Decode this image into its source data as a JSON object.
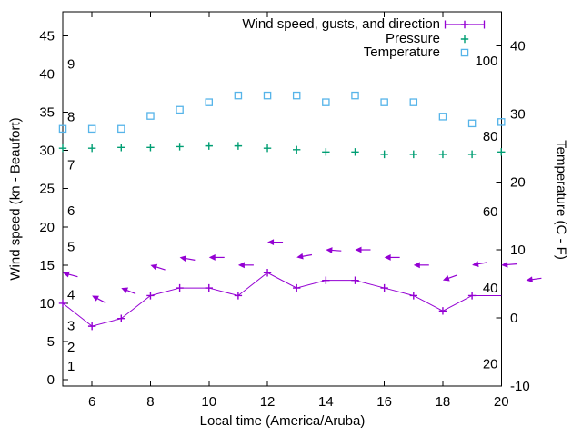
{
  "axis_titles": {
    "x": "Local time (America/Aruba)",
    "y_left": "Wind speed (kn - Beaufort)",
    "y_right": "Temperature (C - F)"
  },
  "legend": {
    "position": "top-right-inside",
    "items": [
      {
        "label": "Wind speed, gusts, and direction",
        "series": "wind",
        "marker": "errorbar-line",
        "color": "#9400d3"
      },
      {
        "label": "Pressure",
        "series": "pressure",
        "marker": "plus",
        "color": "#009e73"
      },
      {
        "label": "Temperature",
        "series": "temperature",
        "marker": "square",
        "color": "#56b4e9"
      }
    ]
  },
  "chart_data": {
    "type": "line",
    "title": "",
    "xlabel": "Local time (America/Aruba)",
    "x": [
      5,
      6,
      7,
      8,
      9,
      10,
      11,
      12,
      13,
      14,
      15,
      16,
      17,
      18,
      19,
      20
    ],
    "series": [
      {
        "name": "Wind speed (kn)",
        "style": "line-with-plus-markers",
        "color": "#9400d3",
        "values": [
          10,
          7,
          8,
          11,
          12,
          12,
          11,
          14,
          12,
          13,
          13,
          12,
          11,
          9,
          11,
          11
        ],
        "last_marker_hidden_at_border": true
      },
      {
        "name": "Wind gusts with direction arrows (kn)",
        "style": "arrows",
        "color": "#9400d3",
        "values": [
          14,
          11,
          12,
          15,
          16,
          16,
          15,
          18,
          16,
          17,
          17,
          16,
          15,
          13,
          15,
          15
        ],
        "arrow_tilt_deg_up_left": [
          15,
          28,
          22,
          18,
          10,
          0,
          0,
          0,
          -10,
          4,
          0,
          0,
          0,
          -20,
          -10,
          -4
        ],
        "extra_arrow_outside_border": {
          "x": 20.85,
          "value": 13,
          "tilt_deg_up_left": -8
        }
      },
      {
        "name": "Pressure (left-axis units, inHg-scale)",
        "style": "plus-markers",
        "color": "#009e73",
        "values": [
          30.3,
          30.3,
          30.4,
          30.4,
          30.5,
          30.6,
          30.6,
          30.3,
          30.1,
          29.8,
          29.8,
          29.5,
          29.5,
          29.5,
          29.5,
          29.8
        ]
      },
      {
        "name": "Temperature (C)",
        "style": "open-square-markers",
        "color": "#56b4e9",
        "values": [
          27.8,
          27.8,
          27.8,
          29.7,
          30.6,
          31.7,
          32.7,
          32.7,
          32.7,
          31.7,
          32.7,
          31.7,
          31.7,
          29.6,
          28.6,
          28.8
        ]
      }
    ],
    "axes": {
      "x": {
        "label": "Local time (America/Aruba)",
        "range": [
          5,
          20.06
        ],
        "ticks": [
          6,
          8,
          10,
          12,
          14,
          16,
          18,
          20
        ],
        "grid": false
      },
      "y_left": {
        "label": "Wind speed (kn - Beaufort)",
        "units": "kn",
        "ticks": [
          0,
          5,
          10,
          15,
          20,
          25,
          30,
          35,
          40,
          45
        ],
        "range": [
          -0.8,
          48.2
        ]
      },
      "y_left_inner_beaufort": {
        "labels": [
          1,
          2,
          3,
          4,
          5,
          6,
          7,
          8,
          9
        ],
        "kn_positions": [
          1.8,
          4.3,
          7.1,
          11.1,
          17.4,
          22.1,
          28.1,
          34.4,
          41.3
        ]
      },
      "y_right": {
        "label": "Temperature (C - F)",
        "units": "C",
        "ticks": [
          40,
          30,
          20,
          10,
          0,
          -10
        ],
        "range": [
          -10,
          45
        ]
      },
      "y_right_inner_fahrenheit": {
        "labels": [
          100,
          80,
          60,
          40,
          20
        ],
        "c_positions": [
          37.8,
          26.7,
          15.6,
          4.4,
          -6.7
        ]
      }
    },
    "colors": {
      "wind": "#9400d3",
      "pressure": "#009e73",
      "temperature": "#56b4e9",
      "axis": "#000000",
      "background": "#ffffff"
    }
  }
}
